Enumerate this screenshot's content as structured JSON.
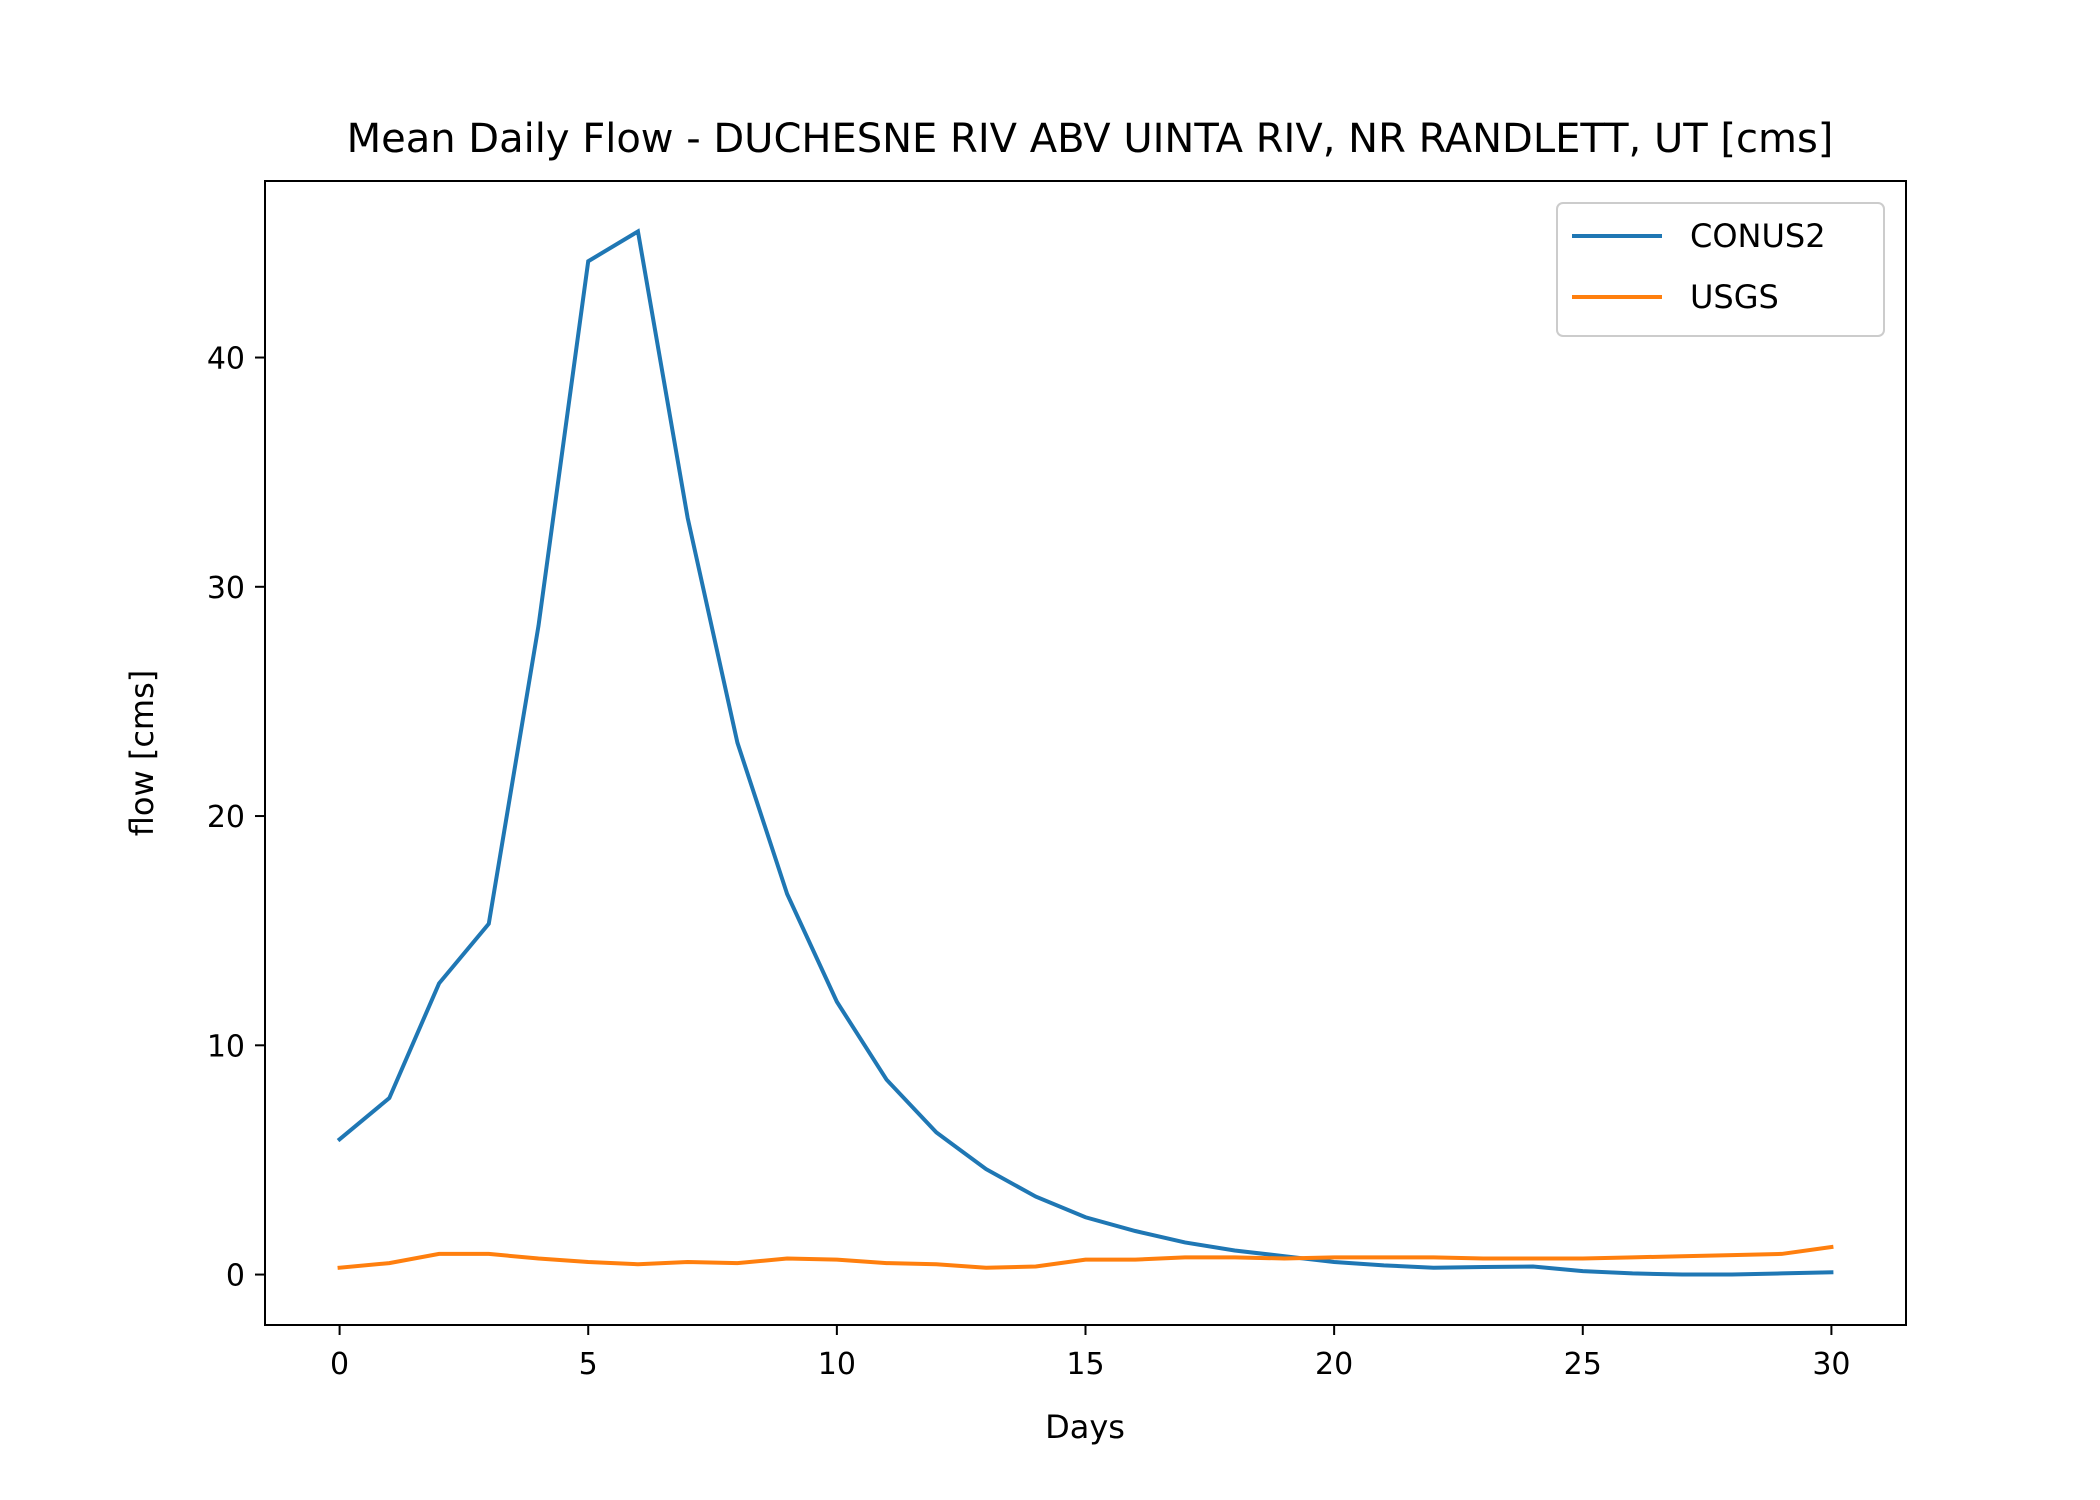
{
  "chart_data": {
    "type": "line",
    "title": "Mean Daily Flow - DUCHESNE RIV ABV UINTA RIV, NR RANDLETT, UT [cms]",
    "xlabel": "Days",
    "ylabel": "flow [cms]",
    "xlim": [
      -1.5,
      31.5
    ],
    "ylim": [
      -2.2,
      47.7
    ],
    "xticks": [
      0,
      5,
      10,
      15,
      20,
      25,
      30
    ],
    "yticks": [
      0,
      10,
      20,
      30,
      40
    ],
    "grid": false,
    "legend_position": "top-right",
    "x": [
      0,
      1,
      2,
      3,
      4,
      5,
      6,
      7,
      8,
      9,
      10,
      11,
      12,
      13,
      14,
      15,
      16,
      17,
      18,
      19,
      20,
      21,
      22,
      23,
      24,
      25,
      26,
      27,
      28,
      29,
      30
    ],
    "series": [
      {
        "name": "CONUS2",
        "color": "#1f77b4",
        "values": [
          5.9,
          7.7,
          12.7,
          15.3,
          28.3,
          44.2,
          45.5,
          33.0,
          23.2,
          16.6,
          11.9,
          8.5,
          6.2,
          4.6,
          3.4,
          2.5,
          1.9,
          1.4,
          1.05,
          0.8,
          0.55,
          0.4,
          0.3,
          0.33,
          0.35,
          0.15,
          0.05,
          0.0,
          0.0,
          0.05,
          0.1
        ]
      },
      {
        "name": "USGS",
        "color": "#ff7f0e",
        "values": [
          0.3,
          0.5,
          0.9,
          0.9,
          0.7,
          0.55,
          0.45,
          0.55,
          0.5,
          0.7,
          0.65,
          0.5,
          0.45,
          0.3,
          0.35,
          0.65,
          0.65,
          0.75,
          0.75,
          0.7,
          0.75,
          0.75,
          0.75,
          0.7,
          0.7,
          0.7,
          0.75,
          0.8,
          0.85,
          0.9,
          1.2
        ]
      }
    ]
  }
}
